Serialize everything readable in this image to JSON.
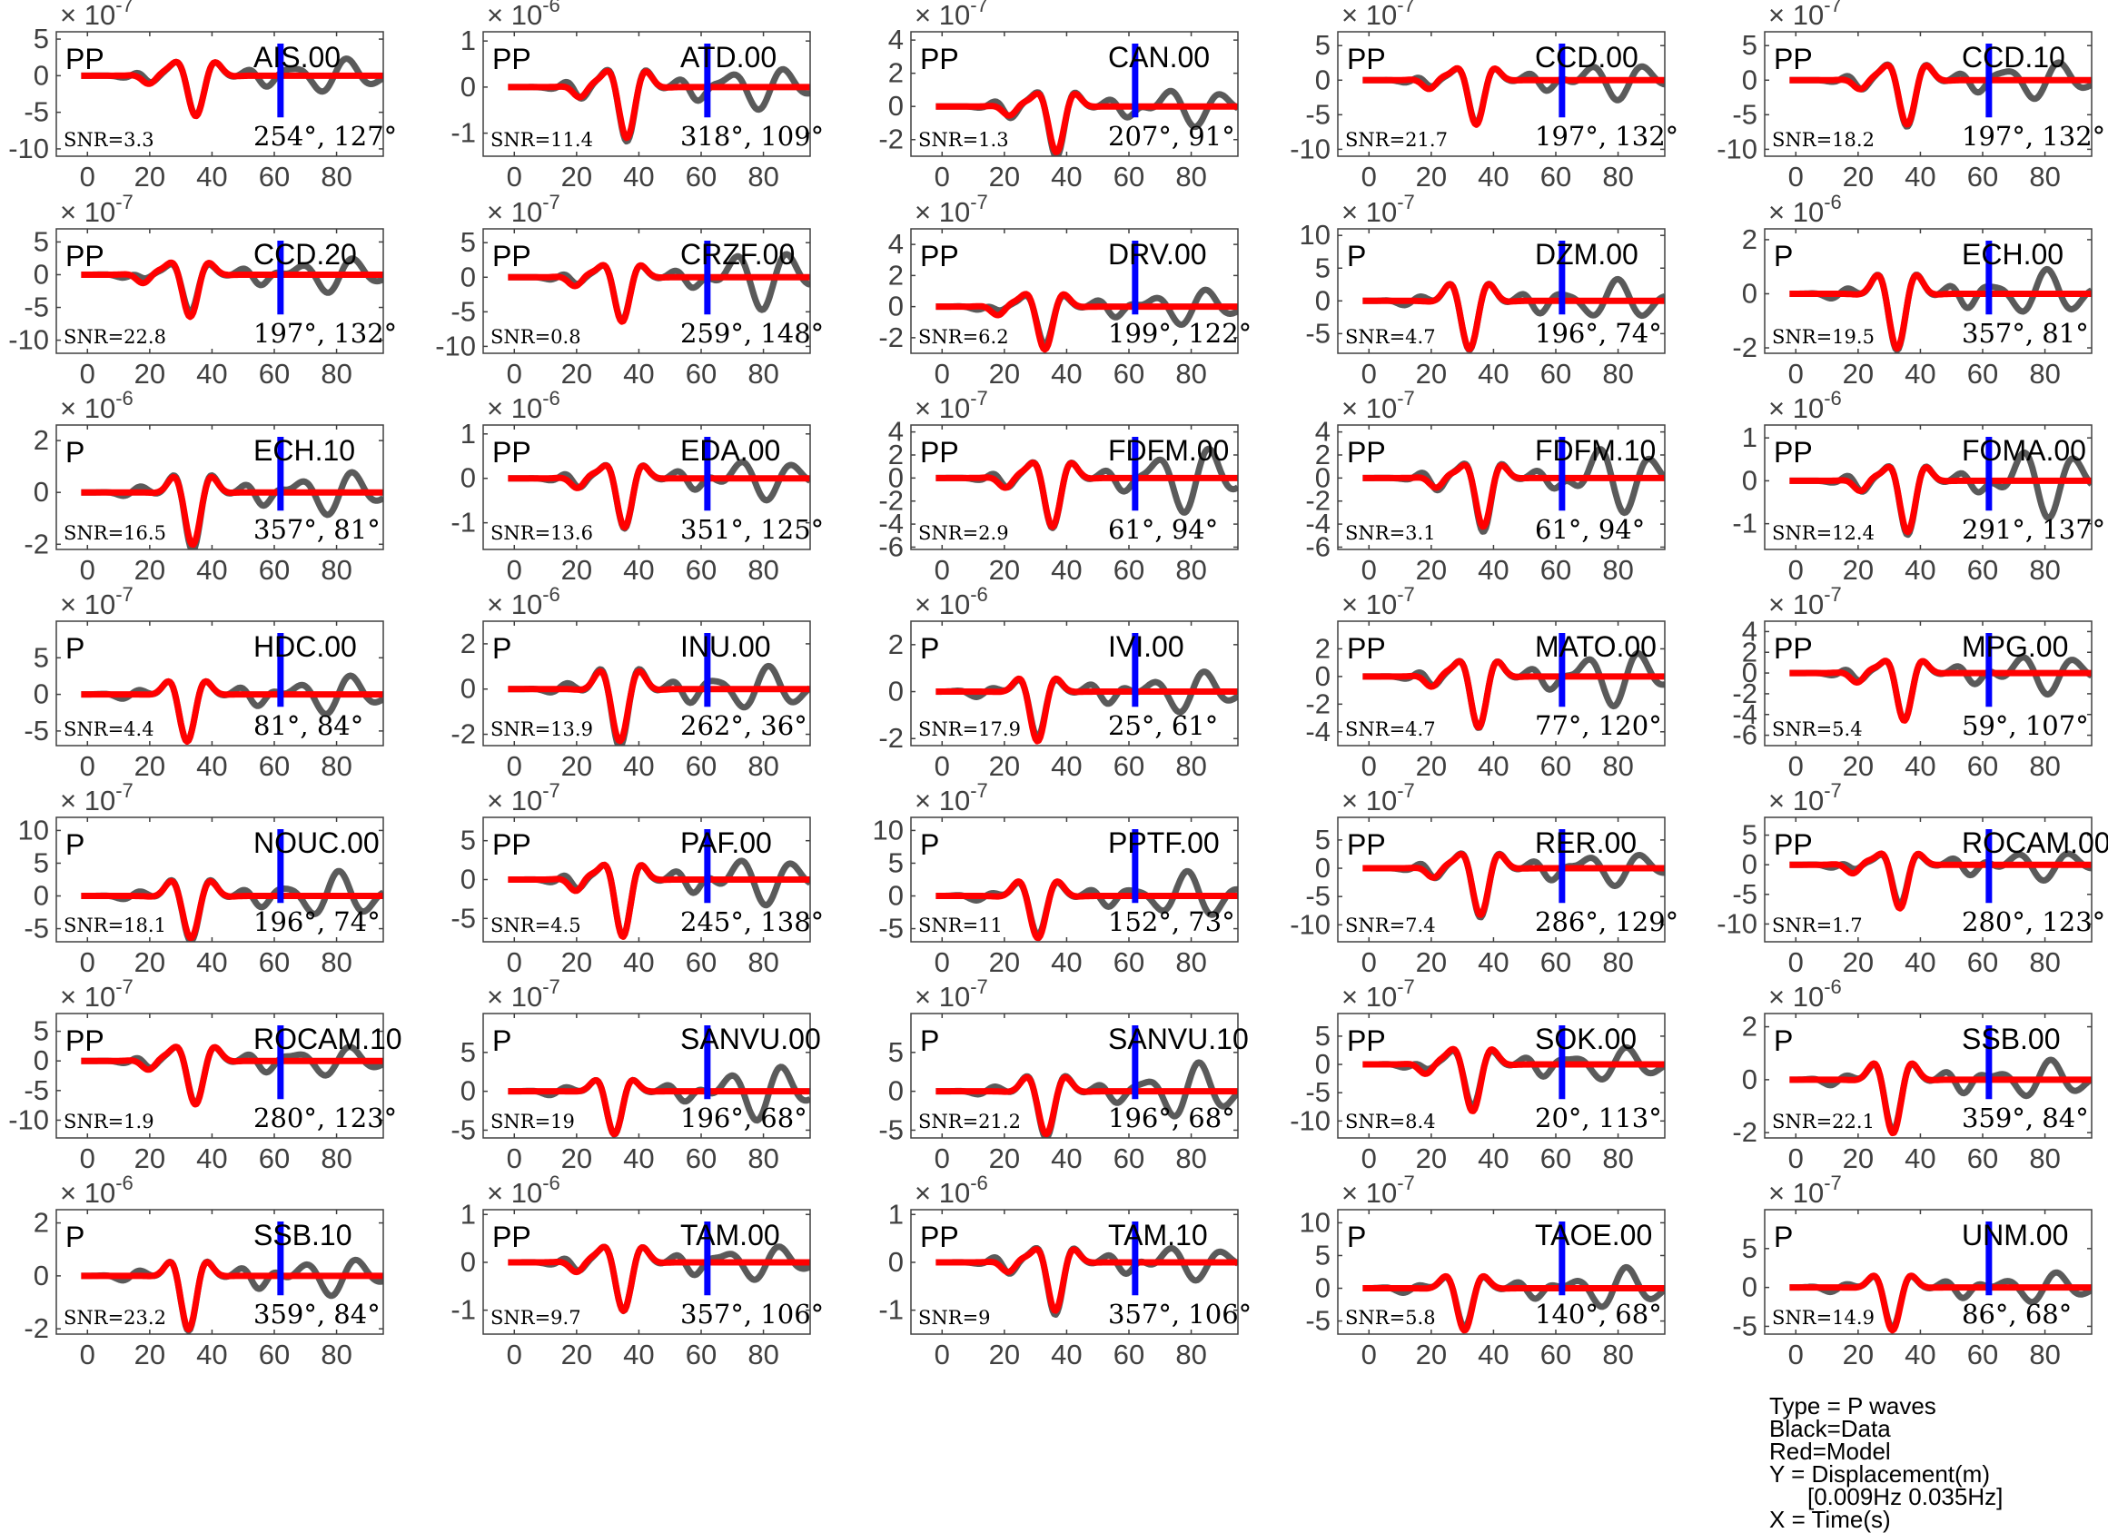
{
  "chart_data": {
    "type": "line",
    "panels": [
      {
        "station": "AIS.00",
        "phase": "PP",
        "snr": "SNR=3.3",
        "azimuth": "254°",
        "takeoff": "127°",
        "exponent": "-7",
        "yticks": [
          5,
          0,
          -5,
          -10
        ],
        "ylim": [
          -11,
          6
        ]
      },
      {
        "station": "ATD.00",
        "phase": "PP",
        "snr": "SNR=11.4",
        "azimuth": "318°",
        "takeoff": "109°",
        "exponent": "-6",
        "yticks": [
          1,
          0,
          -1
        ],
        "ylim": [
          -1.5,
          1.2
        ]
      },
      {
        "station": "CAN.00",
        "phase": "PP",
        "snr": "SNR=1.3",
        "azimuth": "207°",
        "takeoff": "91°",
        "exponent": "-7",
        "yticks": [
          4,
          2,
          0,
          -2
        ],
        "ylim": [
          -3,
          4.5
        ]
      },
      {
        "station": "CCD.00",
        "phase": "PP",
        "snr": "SNR=21.7",
        "azimuth": "197°",
        "takeoff": "132°",
        "exponent": "-7",
        "yticks": [
          5,
          0,
          -5,
          -10
        ],
        "ylim": [
          -11,
          7
        ]
      },
      {
        "station": "CCD.10",
        "phase": "PP",
        "snr": "SNR=18.2",
        "azimuth": "197°",
        "takeoff": "132°",
        "exponent": "-7",
        "yticks": [
          5,
          0,
          -5,
          -10
        ],
        "ylim": [
          -11,
          7
        ]
      },
      {
        "station": "CCD.20",
        "phase": "PP",
        "snr": "SNR=22.8",
        "azimuth": "197°",
        "takeoff": "132°",
        "exponent": "-7",
        "yticks": [
          5,
          0,
          -5,
          -10
        ],
        "ylim": [
          -12,
          7
        ]
      },
      {
        "station": "CRZF.00",
        "phase": "PP",
        "snr": "SNR=0.8",
        "azimuth": "259°",
        "takeoff": "148°",
        "exponent": "-7",
        "yticks": [
          5,
          0,
          -5,
          -10
        ],
        "ylim": [
          -11,
          7
        ]
      },
      {
        "station": "DRV.00",
        "phase": "PP",
        "snr": "SNR=6.2",
        "azimuth": "199°",
        "takeoff": "122°",
        "exponent": "-7",
        "yticks": [
          4,
          2,
          0,
          -2
        ],
        "ylim": [
          -3,
          5
        ]
      },
      {
        "station": "DZM.00",
        "phase": "P",
        "snr": "SNR=4.7",
        "azimuth": "196°",
        "takeoff": "74°",
        "exponent": "-7",
        "yticks": [
          10,
          5,
          0,
          -5
        ],
        "ylim": [
          -8,
          11
        ]
      },
      {
        "station": "ECH.00",
        "phase": "P",
        "snr": "SNR=19.5",
        "azimuth": "357°",
        "takeoff": "81°",
        "exponent": "-6",
        "yticks": [
          2,
          0,
          -2
        ],
        "ylim": [
          -2.2,
          2.4
        ]
      },
      {
        "station": "ECH.10",
        "phase": "P",
        "snr": "SNR=16.5",
        "azimuth": "357°",
        "takeoff": "81°",
        "exponent": "-6",
        "yticks": [
          2,
          0,
          -2
        ],
        "ylim": [
          -2.2,
          2.6
        ]
      },
      {
        "station": "EDA.00",
        "phase": "PP",
        "snr": "SNR=13.6",
        "azimuth": "351°",
        "takeoff": "125°",
        "exponent": "-6",
        "yticks": [
          1,
          0,
          -1
        ],
        "ylim": [
          -1.6,
          1.2
        ]
      },
      {
        "station": "FDFM.00",
        "phase": "PP",
        "snr": "SNR=2.9",
        "azimuth": "61°",
        "takeoff": "94°",
        "exponent": "-7",
        "yticks": [
          4,
          2,
          0,
          -2,
          -4,
          -6
        ],
        "ylim": [
          -6.2,
          4.6
        ]
      },
      {
        "station": "FDFM.10",
        "phase": "PP",
        "snr": "SNR=3.1",
        "azimuth": "61°",
        "takeoff": "94°",
        "exponent": "-7",
        "yticks": [
          4,
          2,
          0,
          -2,
          -4,
          -6
        ],
        "ylim": [
          -6.2,
          4.6
        ]
      },
      {
        "station": "FOMA.00",
        "phase": "PP",
        "snr": "SNR=12.4",
        "azimuth": "291°",
        "takeoff": "137°",
        "exponent": "-6",
        "yticks": [
          1,
          0,
          -1
        ],
        "ylim": [
          -1.6,
          1.3
        ]
      },
      {
        "station": "HDC.00",
        "phase": "P",
        "snr": "SNR=4.4",
        "azimuth": "81°",
        "takeoff": "84°",
        "exponent": "-7",
        "yticks": [
          5,
          0,
          -5
        ],
        "ylim": [
          -7,
          10
        ]
      },
      {
        "station": "INU.00",
        "phase": "P",
        "snr": "SNR=13.9",
        "azimuth": "262°",
        "takeoff": "36°",
        "exponent": "-6",
        "yticks": [
          2,
          0,
          -2
        ],
        "ylim": [
          -2.5,
          3
        ]
      },
      {
        "station": "IVI.00",
        "phase": "P",
        "snr": "SNR=17.9",
        "azimuth": "25°",
        "takeoff": "61°",
        "exponent": "-6",
        "yticks": [
          2,
          0,
          -2
        ],
        "ylim": [
          -2.3,
          3
        ]
      },
      {
        "station": "MATO.00",
        "phase": "PP",
        "snr": "SNR=4.7",
        "azimuth": "77°",
        "takeoff": "120°",
        "exponent": "-7",
        "yticks": [
          2,
          0,
          -2,
          -4
        ],
        "ylim": [
          -5,
          4
        ]
      },
      {
        "station": "MPG.00",
        "phase": "PP",
        "snr": "SNR=5.4",
        "azimuth": "59°",
        "takeoff": "107°",
        "exponent": "-7",
        "yticks": [
          4,
          2,
          0,
          -2,
          -4,
          -6
        ],
        "ylim": [
          -7,
          5
        ]
      },
      {
        "station": "NOUC.00",
        "phase": "P",
        "snr": "SNR=18.1",
        "azimuth": "196°",
        "takeoff": "74°",
        "exponent": "-7",
        "yticks": [
          10,
          5,
          0,
          -5
        ],
        "ylim": [
          -7,
          12
        ]
      },
      {
        "station": "PAF.00",
        "phase": "PP",
        "snr": "SNR=4.5",
        "azimuth": "245°",
        "takeoff": "138°",
        "exponent": "-7",
        "yticks": [
          5,
          0,
          -5
        ],
        "ylim": [
          -8,
          8
        ]
      },
      {
        "station": "PPTF.00",
        "phase": "P",
        "snr": "SNR=11",
        "azimuth": "152°",
        "takeoff": "73°",
        "exponent": "-7",
        "yticks": [
          10,
          5,
          0,
          -5
        ],
        "ylim": [
          -7,
          12
        ]
      },
      {
        "station": "RER.00",
        "phase": "PP",
        "snr": "SNR=7.4",
        "azimuth": "286°",
        "takeoff": "129°",
        "exponent": "-7",
        "yticks": [
          5,
          0,
          -5,
          -10
        ],
        "ylim": [
          -13,
          9
        ]
      },
      {
        "station": "ROCAM.00",
        "phase": "PP",
        "snr": "SNR=1.7",
        "azimuth": "280°",
        "takeoff": "123°",
        "exponent": "-7",
        "yticks": [
          5,
          0,
          -5,
          -10
        ],
        "ylim": [
          -13,
          8
        ]
      },
      {
        "station": "ROCAM.10",
        "phase": "PP",
        "snr": "SNR=1.9",
        "azimuth": "280°",
        "takeoff": "123°",
        "exponent": "-7",
        "yticks": [
          5,
          0,
          -5,
          -10
        ],
        "ylim": [
          -13,
          8
        ]
      },
      {
        "station": "SANVU.00",
        "phase": "P",
        "snr": "SNR=19",
        "azimuth": "196°",
        "takeoff": "68°",
        "exponent": "-7",
        "yticks": [
          5,
          0,
          -5
        ],
        "ylim": [
          -6,
          10
        ]
      },
      {
        "station": "SANVU.10",
        "phase": "P",
        "snr": "SNR=21.2",
        "azimuth": "196°",
        "takeoff": "68°",
        "exponent": "-7",
        "yticks": [
          5,
          0,
          -5
        ],
        "ylim": [
          -6,
          10
        ]
      },
      {
        "station": "SOK.00",
        "phase": "PP",
        "snr": "SNR=8.4",
        "azimuth": "20°",
        "takeoff": "113°",
        "exponent": "-7",
        "yticks": [
          5,
          0,
          -5,
          -10
        ],
        "ylim": [
          -13,
          9
        ]
      },
      {
        "station": "SSB.00",
        "phase": "P",
        "snr": "SNR=22.1",
        "azimuth": "359°",
        "takeoff": "84°",
        "exponent": "-6",
        "yticks": [
          2,
          0,
          -2
        ],
        "ylim": [
          -2.2,
          2.5
        ]
      },
      {
        "station": "SSB.10",
        "phase": "P",
        "snr": "SNR=23.2",
        "azimuth": "359°",
        "takeoff": "84°",
        "exponent": "-6",
        "yticks": [
          2,
          0,
          -2
        ],
        "ylim": [
          -2.2,
          2.5
        ]
      },
      {
        "station": "TAM.00",
        "phase": "PP",
        "snr": "SNR=9.7",
        "azimuth": "357°",
        "takeoff": "106°",
        "exponent": "-6",
        "yticks": [
          1,
          0,
          -1
        ],
        "ylim": [
          -1.5,
          1.1
        ]
      },
      {
        "station": "TAM.10",
        "phase": "PP",
        "snr": "SNR=9",
        "azimuth": "357°",
        "takeoff": "106°",
        "exponent": "-6",
        "yticks": [
          1,
          0,
          -1
        ],
        "ylim": [
          -1.5,
          1.1
        ]
      },
      {
        "station": "TAOE.00",
        "phase": "P",
        "snr": "SNR=5.8",
        "azimuth": "140°",
        "takeoff": "68°",
        "exponent": "-7",
        "yticks": [
          10,
          5,
          0,
          -5
        ],
        "ylim": [
          -7,
          12
        ]
      },
      {
        "station": "UNM.00",
        "phase": "P",
        "snr": "SNR=14.9",
        "azimuth": "86°",
        "takeoff": "68°",
        "exponent": "-7",
        "yticks": [
          5,
          0,
          -5
        ],
        "ylim": [
          -6,
          10
        ]
      }
    ],
    "xlim": [
      -10,
      95
    ],
    "xticks": [
      0,
      20,
      40,
      60,
      80
    ],
    "marker_time": 62,
    "data_color": "#5a5a5a",
    "model_color": "#ff0000",
    "marker_color": "#0000ff"
  },
  "legend_note": {
    "type": "Type = P waves",
    "black": "Black=Data",
    "red": "Red=Model",
    "y": "Y = Displacement(m)",
    "band": "[0.009Hz 0.035Hz]",
    "x": "X = Time(s)"
  }
}
